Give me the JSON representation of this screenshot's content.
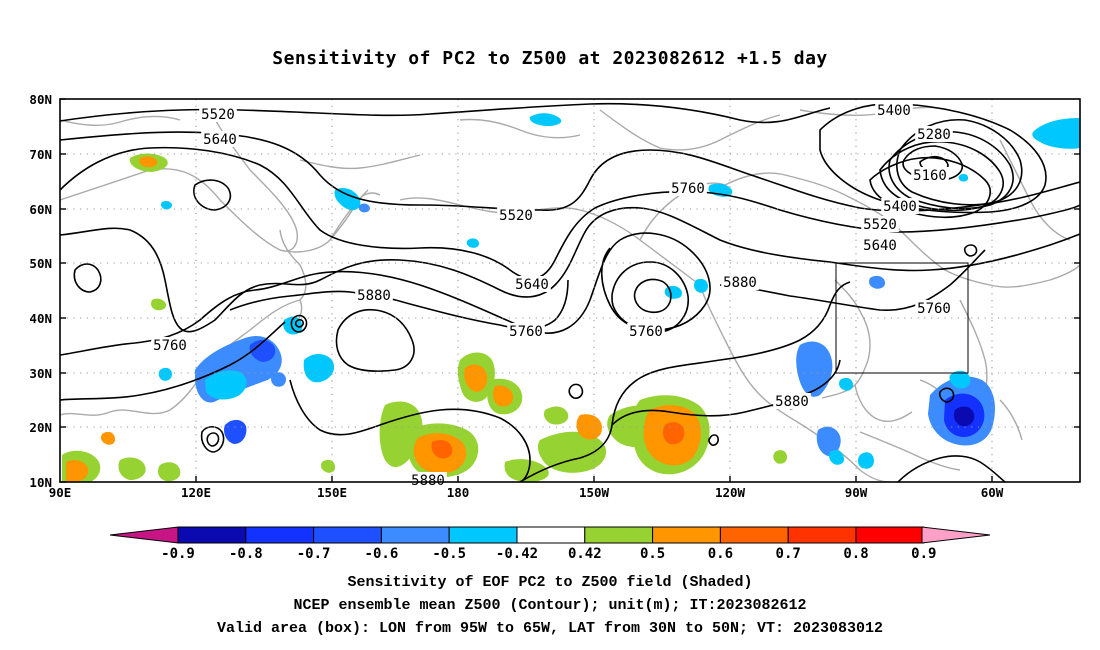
{
  "map": {
    "title": "Sensitivity of PC2 to Z500 at 2023082612 +1.5 day",
    "lat_labels": [
      "80N",
      "70N",
      "60N",
      "50N",
      "40N",
      "30N",
      "20N",
      "10N"
    ],
    "lon_labels": [
      "90E",
      "120E",
      "150E",
      "180",
      "150W",
      "120W",
      "90W",
      "60W"
    ],
    "contour_labels": [
      "5520",
      "5640",
      "5400",
      "5280",
      "5160",
      "5760",
      "5520",
      "5400",
      "5520",
      "5640",
      "5640",
      "5880",
      "5880",
      "5760",
      "5760",
      "5760",
      "5760",
      "5880",
      "5880"
    ],
    "colorbar": {
      "labels": [
        "-0.9",
        "-0.8",
        "-0.7",
        "-0.6",
        "-0.5",
        "-0.42",
        "0.42",
        "0.5",
        "0.6",
        "0.7",
        "0.8",
        "0.9"
      ],
      "colors": [
        "#c71585",
        "#0a0ab0",
        "#1432ff",
        "#1e50ff",
        "#3c8cff",
        "#00c8ff",
        "#ffffff",
        "#96d232",
        "#ff9600",
        "#ff6400",
        "#ff3200",
        "#ff0000",
        "#ffa0c8"
      ]
    },
    "caption": {
      "line1": "Sensitivity of EOF PC2 to Z500 field (Shaded)",
      "line2": "NCEP ensemble mean Z500 (Contour); unit(m); IT:2023082612",
      "line3": "Valid area (box): LON from 95W to 65W, LAT from 30N to 50N; VT: 2023083012"
    }
  }
}
